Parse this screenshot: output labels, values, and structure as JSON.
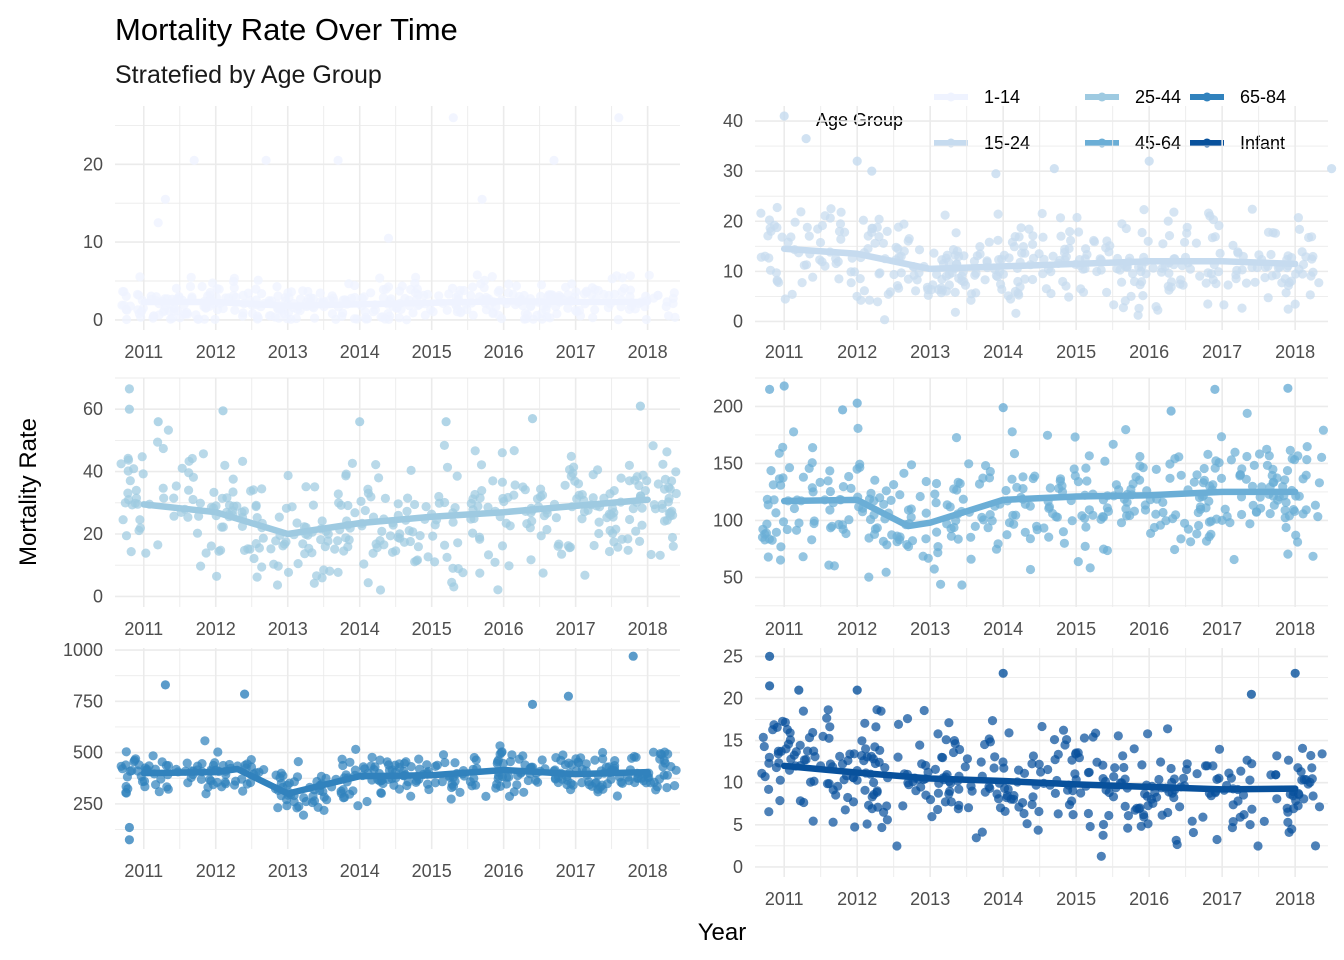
{
  "chart_data": {
    "type": "scatter",
    "title": "Mortality Rate Over Time",
    "subtitle": "Stratefied by Age Group",
    "xlabel": "Year",
    "ylabel": "Mortality Rate",
    "x_ticks": [
      "2011",
      "2012",
      "2013",
      "2014",
      "2015",
      "2016",
      "2017",
      "2018"
    ],
    "grid": true,
    "legend": {
      "title": "Age Group",
      "placement": "top-right",
      "entries": [
        {
          "label": "1-14",
          "color": "#eff3ff"
        },
        {
          "label": "15-24",
          "color": "#c6dbef"
        },
        {
          "label": "25-44",
          "color": "#9ecae1"
        },
        {
          "label": "45-64",
          "color": "#6baed6"
        },
        {
          "label": "65-84",
          "color": "#3182bd"
        },
        {
          "label": "Infant",
          "color": "#08519c"
        }
      ]
    },
    "panels": [
      {
        "name": "1-14",
        "color": "#eff3ff",
        "xlim": [
          2010.6,
          2018.45
        ],
        "ylim": [
          -1.3,
          27.5
        ],
        "yticks": [
          0,
          10,
          20
        ],
        "trend": [
          [
            2011,
            2.3
          ],
          [
            2012,
            2.3
          ],
          [
            2013,
            1.8
          ],
          [
            2014,
            2.0
          ],
          [
            2015,
            2.2
          ],
          [
            2016,
            2.4
          ],
          [
            2017,
            2.3
          ],
          [
            2018,
            2.3
          ]
        ],
        "highlights": [
          [
            2011.2,
            12.5
          ],
          [
            2011.3,
            15.5
          ],
          [
            2011.7,
            20.5
          ],
          [
            2012.7,
            20.5
          ],
          [
            2013.7,
            20.5
          ],
          [
            2014.4,
            10.5
          ],
          [
            2015.3,
            26.0
          ],
          [
            2015.7,
            15.5
          ],
          [
            2016.7,
            20.5
          ],
          [
            2017.6,
            26.0
          ]
        ],
        "mean": 2.2,
        "spread": 2.0,
        "min": 0
      },
      {
        "name": "15-24",
        "color": "#c6dbef",
        "xlim": [
          2010.6,
          2018.45
        ],
        "ylim": [
          -1.7,
          43
        ],
        "yticks": [
          0,
          10,
          20,
          30,
          40
        ],
        "trend": [
          [
            2011,
            14.5
          ],
          [
            2012,
            13.5
          ],
          [
            2013,
            10.5
          ],
          [
            2014,
            11.0
          ],
          [
            2015,
            11.5
          ],
          [
            2016,
            12.0
          ],
          [
            2017,
            12.0
          ],
          [
            2018,
            11.5
          ]
        ],
        "highlights": [
          [
            2011.0,
            41.0
          ],
          [
            2011.3,
            36.5
          ],
          [
            2012.0,
            32.0
          ],
          [
            2012.2,
            30.0
          ],
          [
            2013.9,
            29.5
          ],
          [
            2014.7,
            30.5
          ],
          [
            2016.0,
            32.0
          ],
          [
            2018.5,
            30.5
          ]
        ],
        "mean": 12.0,
        "spread": 6.5,
        "min": 0
      },
      {
        "name": "25-44",
        "color": "#9ecae1",
        "xlim": [
          2010.6,
          2018.45
        ],
        "ylim": [
          -3.4,
          70
        ],
        "yticks": [
          0,
          20,
          40,
          60
        ],
        "trend": [
          [
            2011,
            29.5
          ],
          [
            2012,
            27.0
          ],
          [
            2013,
            20.0
          ],
          [
            2014,
            23.5
          ],
          [
            2015,
            25.5
          ],
          [
            2016,
            27.0
          ],
          [
            2017,
            29.0
          ],
          [
            2018,
            31.0
          ]
        ],
        "highlights": [
          [
            2010.8,
            66.5
          ],
          [
            2010.8,
            60.0
          ],
          [
            2011.2,
            56.0
          ],
          [
            2012.1,
            59.5
          ],
          [
            2014.0,
            56.0
          ],
          [
            2015.2,
            56.0
          ],
          [
            2016.4,
            57.0
          ],
          [
            2017.9,
            61.0
          ]
        ],
        "mean": 27.0,
        "spread": 13.0,
        "min": 2
      },
      {
        "name": "45-64",
        "color": "#6baed6",
        "xlim": [
          2010.6,
          2018.45
        ],
        "ylim": [
          24,
          225
        ],
        "yticks": [
          50,
          100,
          150,
          200
        ],
        "trend": [
          [
            2011,
            117
          ],
          [
            2012,
            118
          ],
          [
            2012.7,
            95
          ],
          [
            2013.0,
            98
          ],
          [
            2014,
            118
          ],
          [
            2015,
            121
          ],
          [
            2016,
            122
          ],
          [
            2017,
            125
          ],
          [
            2018,
            125
          ]
        ],
        "highlights": [
          [
            2010.8,
            215
          ],
          [
            2011.0,
            218
          ],
          [
            2011.8,
            197
          ],
          [
            2012.0,
            203
          ],
          [
            2014.0,
            199
          ],
          [
            2016.3,
            196
          ],
          [
            2016.9,
            215
          ],
          [
            2017.9,
            216
          ]
        ],
        "mean": 118,
        "spread": 38,
        "min": 30
      },
      {
        "name": "65-84",
        "color": "#3182bd",
        "xlim": [
          2010.6,
          2018.45
        ],
        "ylim": [
          30,
          1010
        ],
        "yticks": [
          250,
          500,
          750,
          1000
        ],
        "trend": [
          [
            2011,
            400
          ],
          [
            2012,
            405
          ],
          [
            2012.3,
            420
          ],
          [
            2013,
            300
          ],
          [
            2014,
            385
          ],
          [
            2015,
            390
          ],
          [
            2016,
            415
          ],
          [
            2017,
            395
          ],
          [
            2018,
            405
          ]
        ],
        "highlights": [
          [
            2011.3,
            830
          ],
          [
            2012.4,
            785
          ],
          [
            2016.4,
            735
          ],
          [
            2016.9,
            775
          ],
          [
            2017.8,
            970
          ],
          [
            2010.8,
            75
          ],
          [
            2010.8,
            135
          ]
        ],
        "mean": 395,
        "spread": 80,
        "min": 150
      },
      {
        "name": "Infant",
        "color": "#08519c",
        "xlim": [
          2010.6,
          2018.45
        ],
        "ylim": [
          -1.2,
          26
        ],
        "yticks": [
          0,
          5,
          10,
          15,
          20,
          25
        ],
        "trend": [
          [
            2011,
            12.0
          ],
          [
            2012,
            11.2
          ],
          [
            2013,
            10.5
          ],
          [
            2014,
            10.2
          ],
          [
            2015,
            9.8
          ],
          [
            2016,
            9.5
          ],
          [
            2017,
            9.2
          ],
          [
            2018,
            9.3
          ]
        ],
        "highlights": [
          [
            2010.8,
            25.0
          ],
          [
            2010.8,
            21.5
          ],
          [
            2011.2,
            21.0
          ],
          [
            2012.0,
            21.0
          ],
          [
            2014.0,
            23.0
          ],
          [
            2018.0,
            23.0
          ],
          [
            2017.4,
            20.5
          ]
        ],
        "mean": 10.5,
        "spread": 4.5,
        "min": 0
      }
    ]
  }
}
